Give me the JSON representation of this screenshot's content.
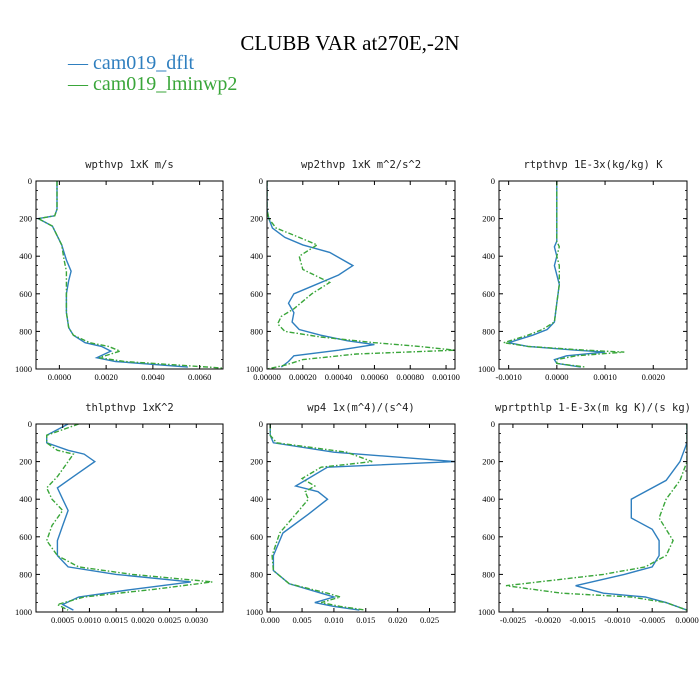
{
  "chart_data": {
    "type": "line",
    "title": "CLUBB VAR at270E,-2N",
    "legend": [
      {
        "label": "— cam019_dflt",
        "color": "#2f7fbf"
      },
      {
        "label": "— cam019_lminwp2",
        "color": "#3aa63a"
      }
    ],
    "panels": [
      {
        "title": "wpthvp   1xK m/s",
        "xlim": [
          -0.001,
          0.007
        ],
        "ylim": [
          1000,
          0
        ],
        "yticks": [
          "0",
          "200",
          "400",
          "600",
          "800",
          "1000"
        ],
        "xticks": [
          {
            "v": 0.0,
            "label": "0.0000"
          },
          {
            "v": 0.002,
            "label": "0.0020"
          },
          {
            "v": 0.004,
            "label": "0.0040"
          },
          {
            "v": 0.006,
            "label": "0.0060"
          }
        ],
        "series": [
          {
            "name": "cam019_dflt",
            "style": "solid",
            "x": [
              -0.0001,
              -0.0001,
              -0.0001,
              -0.0002,
              -0.0009,
              -0.0003,
              0.0001,
              0.0003,
              0.0005,
              0.0004,
              0.0003,
              0.0003,
              0.0004,
              0.0006,
              0.0011,
              0.0018,
              0.0022,
              0.0016,
              0.0024,
              0.0055
            ],
            "y": [
              0,
              100,
              150,
              185,
              200,
              240,
              340,
              420,
              480,
              530,
              600,
              700,
              780,
              820,
              860,
              880,
              905,
              940,
              960,
              990
            ]
          },
          {
            "name": "cam019_lminwp2",
            "style": "dashed",
            "x": [
              -0.0001,
              -0.0001,
              -0.0001,
              -0.0002,
              -0.0009,
              -0.0003,
              0.0001,
              0.0002,
              0.0003,
              0.0003,
              0.0003,
              0.0003,
              0.0004,
              0.0006,
              0.0013,
              0.0021,
              0.0026,
              0.0017,
              0.0028,
              0.007
            ],
            "y": [
              0,
              100,
              150,
              185,
              200,
              240,
              340,
              420,
              480,
              530,
              600,
              700,
              780,
              820,
              860,
              880,
              905,
              940,
              960,
              995
            ]
          }
        ]
      },
      {
        "title": "wp2thvp   1xK m^2/s^2",
        "xlim": [
          0.0,
          0.00105
        ],
        "ylim": [
          1000,
          0
        ],
        "yticks": [
          "0",
          "200",
          "400",
          "600",
          "800",
          "1000"
        ],
        "xticks": [
          {
            "v": 0.0,
            "label": "0.00000"
          },
          {
            "v": 0.0002,
            "label": "0.00020"
          },
          {
            "v": 0.0004,
            "label": "0.00040"
          },
          {
            "v": 0.0006,
            "label": "0.00060"
          },
          {
            "v": 0.0008,
            "label": "0.00080"
          },
          {
            "v": 0.001,
            "label": "0.00100"
          }
        ],
        "series": [
          {
            "name": "cam019_dflt",
            "style": "solid",
            "x": [
              0.0,
              0.0,
              1e-05,
              3e-05,
              0.0001,
              0.0002,
              0.00035,
              0.00048,
              0.0004,
              0.00025,
              0.00015,
              0.00012,
              0.00015,
              0.00014,
              0.00018,
              0.0003,
              0.00045,
              0.0006,
              0.0004,
              0.00015,
              0.00012,
              8e-05
            ],
            "y": [
              0,
              150,
              200,
              250,
              300,
              340,
              380,
              450,
              500,
              560,
              600,
              650,
              700,
              750,
              790,
              820,
              850,
              870,
              900,
              930,
              960,
              990
            ]
          },
          {
            "name": "cam019_lminwp2",
            "style": "dashed",
            "x": [
              0.0,
              0.0,
              1e-05,
              5e-05,
              0.00018,
              0.00028,
              0.00018,
              0.0002,
              0.00035,
              0.00025,
              0.00015,
              8e-05,
              6e-05,
              0.0001,
              0.0003,
              0.0006,
              0.00085,
              0.00105,
              0.0005,
              0.0002,
              0.0001,
              0.0
            ],
            "y": [
              0,
              150,
              200,
              250,
              300,
              340,
              400,
              470,
              540,
              600,
              680,
              720,
              760,
              800,
              830,
              860,
              880,
              900,
              920,
              950,
              980,
              1000
            ]
          }
        ]
      },
      {
        "title": "rtpthvp   1E-3x(kg/kg) K",
        "xlim": [
          -0.0012,
          0.0027
        ],
        "ylim": [
          1000,
          0
        ],
        "yticks": [
          "0",
          "200",
          "400",
          "600",
          "800",
          "1000"
        ],
        "xticks": [
          {
            "v": -0.001,
            "label": "-0.0010"
          },
          {
            "v": 0.0,
            "label": "0.0000"
          },
          {
            "v": 0.001,
            "label": "0.0010"
          },
          {
            "v": 0.002,
            "label": "0.0020"
          }
        ],
        "series": [
          {
            "name": "cam019_dflt",
            "style": "solid",
            "x": [
              0.0,
              0.0,
              0.0,
              -5e-05,
              0.0,
              -5e-05,
              5e-05,
              0.0,
              -5e-05,
              -0.0002,
              -0.0005,
              -0.001,
              -0.0006,
              0.0004,
              0.001,
              0.0002,
              -5e-05,
              0.0,
              0.0005
            ],
            "y": [
              0,
              200,
              320,
              350,
              400,
              450,
              550,
              650,
              750,
              790,
              820,
              860,
              880,
              900,
              910,
              930,
              950,
              970,
              990
            ]
          },
          {
            "name": "cam019_lminwp2",
            "style": "dashed",
            "x": [
              0.0,
              0.0,
              0.0,
              5e-05,
              0.0,
              5e-05,
              5e-05,
              0.0,
              -5e-05,
              -0.0003,
              -0.0006,
              -0.0011,
              -0.0006,
              0.0006,
              0.0014,
              0.0004,
              0.0,
              0.0,
              0.0006
            ],
            "y": [
              0,
              200,
              320,
              350,
              400,
              450,
              550,
              650,
              750,
              790,
              820,
              860,
              880,
              900,
              910,
              930,
              950,
              970,
              990
            ]
          }
        ]
      },
      {
        "title": "thlpthvp   1xK^2",
        "xlim": [
          0.0,
          0.0035
        ],
        "ylim": [
          1000,
          0
        ],
        "yticks": [
          "0",
          "200",
          "400",
          "600",
          "800",
          "1000"
        ],
        "xticks": [
          {
            "v": 0.0005,
            "label": "0.0005"
          },
          {
            "v": 0.001,
            "label": "0.0010"
          },
          {
            "v": 0.0015,
            "label": "0.0015"
          },
          {
            "v": 0.002,
            "label": "0.0020"
          },
          {
            "v": 0.0025,
            "label": "0.0025"
          },
          {
            "v": 0.003,
            "label": "0.0030"
          }
        ],
        "series": [
          {
            "name": "cam019_dflt",
            "style": "solid",
            "x": [
              0.0006,
              0.0002,
              0.0002,
              0.0006,
              0.0009,
              0.0011,
              0.0007,
              0.0004,
              0.0005,
              0.0006,
              0.0005,
              0.0004,
              0.0004,
              0.0006,
              0.0015,
              0.0029,
              0.0018,
              0.0008,
              0.0005,
              0.0007
            ],
            "y": [
              0,
              60,
              100,
              140,
              160,
              200,
              280,
              340,
              400,
              460,
              540,
              620,
              700,
              760,
              800,
              840,
              880,
              920,
              960,
              990
            ]
          },
          {
            "name": "cam019_lminwp2",
            "style": "dashed",
            "x": [
              0.0008,
              0.0002,
              0.0002,
              0.0004,
              0.0007,
              0.0006,
              0.0004,
              0.0002,
              0.0003,
              0.0005,
              0.0003,
              0.0002,
              0.0004,
              0.0008,
              0.0018,
              0.0033,
              0.0022,
              0.0009,
              0.0004,
              0.0006
            ],
            "y": [
              0,
              60,
              100,
              140,
              160,
              200,
              280,
              340,
              400,
              460,
              540,
              620,
              700,
              760,
              800,
              840,
              880,
              920,
              960,
              990
            ]
          }
        ]
      },
      {
        "title": "wp4   1x(m^4)/(s^4)",
        "xlim": [
          -0.0005,
          0.029
        ],
        "ylim": [
          1000,
          0
        ],
        "yticks": [
          "0",
          "200",
          "400",
          "600",
          "800",
          "1000"
        ],
        "xticks": [
          {
            "v": 0.0,
            "label": "0.000"
          },
          {
            "v": 0.005,
            "label": "0.005"
          },
          {
            "v": 0.01,
            "label": "0.010"
          },
          {
            "v": 0.015,
            "label": "0.015"
          },
          {
            "v": 0.02,
            "label": "0.020"
          },
          {
            "v": 0.025,
            "label": "0.025"
          }
        ],
        "series": [
          {
            "name": "cam019_dflt",
            "style": "solid",
            "x": [
              0.0,
              0.0,
              0.0005,
              0.01,
              0.029,
              0.009,
              0.006,
              0.004,
              0.0075,
              0.009,
              0.006,
              0.002,
              0.0005,
              0.0005,
              0.003,
              0.008,
              0.01,
              0.007,
              0.01,
              0.014
            ],
            "y": [
              0,
              60,
              100,
              150,
              200,
              230,
              290,
              330,
              360,
              400,
              480,
              580,
              700,
              780,
              850,
              900,
              920,
              950,
              970,
              990
            ]
          },
          {
            "name": "cam019_lminwp2",
            "style": "dashed",
            "x": [
              0.0,
              0.0,
              0.001,
              0.012,
              0.016,
              0.008,
              0.005,
              0.007,
              0.0055,
              0.006,
              0.004,
              0.0015,
              0.0003,
              0.0005,
              0.003,
              0.009,
              0.011,
              0.008,
              0.011,
              0.015
            ],
            "y": [
              0,
              60,
              100,
              150,
              200,
              230,
              290,
              330,
              360,
              400,
              480,
              580,
              700,
              780,
              850,
              900,
              920,
              950,
              970,
              990
            ]
          }
        ]
      },
      {
        "title": "wprtpthlp   1-E-3x(m kg K)/(s kg)",
        "xlim": [
          -0.0027,
          0.0
        ],
        "ylim": [
          1000,
          0
        ],
        "yticks": [
          "0",
          "200",
          "400",
          "600",
          "800",
          "1000"
        ],
        "xticks": [
          {
            "v": -0.0025,
            "label": "-0.0025"
          },
          {
            "v": -0.002,
            "label": "-0.0020"
          },
          {
            "v": -0.0015,
            "label": "-0.0015"
          },
          {
            "v": -0.001,
            "label": "-0.0010"
          },
          {
            "v": -0.0005,
            "label": "-0.0005"
          },
          {
            "v": 0.0,
            "label": "0.0000"
          }
        ],
        "series": [
          {
            "name": "cam019_dflt",
            "style": "solid",
            "x": [
              0.0,
              0.0,
              -0.0001,
              -0.0003,
              -0.0008,
              -0.0008,
              -0.0005,
              -0.0004,
              -0.0004,
              -0.0005,
              -0.0009,
              -0.0016,
              -0.0012,
              -0.0006,
              -0.0003,
              0.0
            ],
            "y": [
              0,
              100,
              200,
              300,
              400,
              500,
              560,
              620,
              700,
              760,
              800,
              860,
              900,
              920,
              950,
              990
            ]
          },
          {
            "name": "cam019_lminwp2",
            "style": "dashed",
            "x": [
              0.0,
              0.0,
              0.0,
              -0.0001,
              -0.0003,
              -0.0004,
              -0.0003,
              -0.0002,
              -0.0003,
              -0.0006,
              -0.0012,
              -0.0026,
              -0.0018,
              -0.0008,
              -0.0003,
              0.0
            ],
            "y": [
              0,
              100,
              200,
              300,
              400,
              500,
              560,
              620,
              700,
              760,
              800,
              860,
              900,
              920,
              950,
              990
            ]
          }
        ]
      }
    ]
  }
}
